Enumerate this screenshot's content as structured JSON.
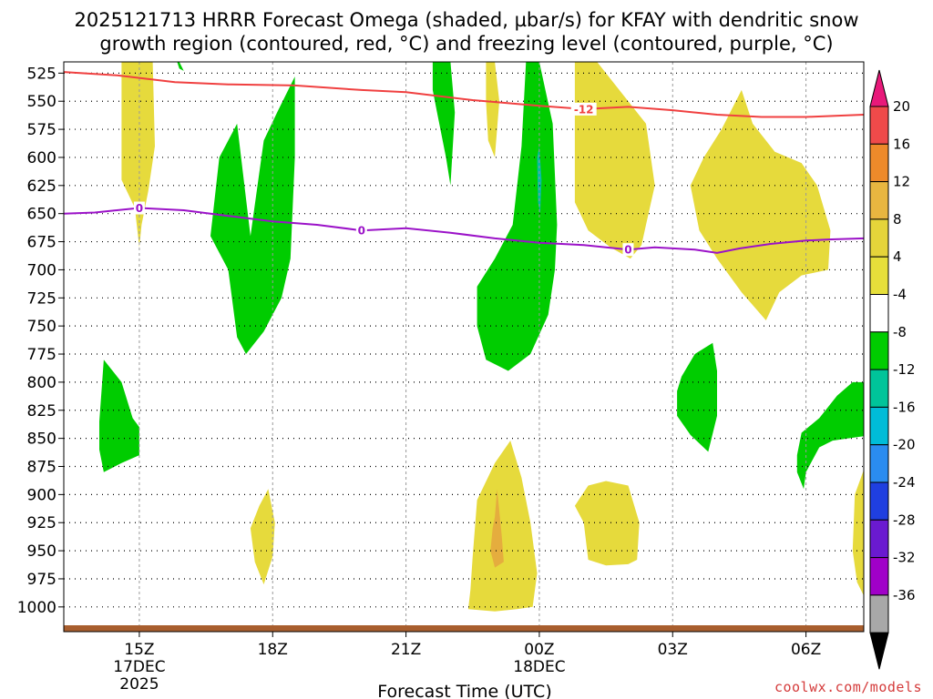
{
  "chart_data": {
    "type": "contour-cross-section",
    "title_line1": "2025121713 HRRR Forecast Omega (shaded, µbar/s) for KFAY with dendritic snow",
    "title_line2": "growth region (contoured, red, °C) and freezing level (contoured, purple, °C)",
    "xlabel": "Forecast Time (UTC)",
    "credit": "coolwx.com/models",
    "x_range_hours": [
      13.3,
      31.3
    ],
    "y_range_hpa": [
      515,
      1022
    ],
    "y_ticks": [
      525,
      550,
      575,
      600,
      625,
      650,
      675,
      700,
      725,
      750,
      775,
      800,
      825,
      850,
      875,
      900,
      925,
      950,
      975,
      1000
    ],
    "x_ticks": [
      {
        "h": 15,
        "label": "15Z",
        "sub1": "17DEC",
        "sub2": "2025"
      },
      {
        "h": 18,
        "label": "18Z",
        "sub1": "",
        "sub2": ""
      },
      {
        "h": 21,
        "label": "21Z",
        "sub1": "",
        "sub2": ""
      },
      {
        "h": 24,
        "label": "00Z",
        "sub1": "18DEC",
        "sub2": ""
      },
      {
        "h": 27,
        "label": "03Z",
        "sub1": "",
        "sub2": ""
      },
      {
        "h": 30,
        "label": "06Z",
        "sub1": "",
        "sub2": ""
      }
    ],
    "colorbar": {
      "levels": [
        20,
        16,
        12,
        8,
        4,
        -4,
        -8,
        -12,
        -16,
        -20,
        -24,
        -28,
        -32,
        -36
      ],
      "colors": [
        "#ef4a4a",
        "#ee8a2a",
        "#e8b640",
        "#e5d43a",
        "#e6df3a",
        "#ffffff",
        "#00cc00",
        "#00c49a",
        "#00bcd8",
        "#2a8cf0",
        "#1f3fe0",
        "#6a1ad0",
        "#a000c8",
        "#a8a8a8"
      ],
      "top_arrow_color": "#e8197a",
      "bottom_arrow_color": "#000000"
    },
    "regions": [
      {
        "class": "rising",
        "color": "#00cc00",
        "points": [
          [
            15.9,
            515
          ],
          [
            16.0,
            523
          ],
          [
            15.9,
            521
          ],
          [
            15.85,
            515
          ]
        ]
      },
      {
        "class": "rising",
        "color": "#00cc00",
        "points": [
          [
            17.5,
            670
          ],
          [
            17.8,
            585
          ],
          [
            18.1,
            560
          ],
          [
            18.5,
            528
          ],
          [
            18.5,
            600
          ],
          [
            18.4,
            690
          ],
          [
            18.2,
            725
          ],
          [
            17.8,
            755
          ],
          [
            17.4,
            775
          ],
          [
            17.2,
            760
          ],
          [
            17.0,
            700
          ],
          [
            16.6,
            670
          ],
          [
            16.8,
            600
          ],
          [
            17.2,
            570
          ]
        ]
      },
      {
        "class": "rising",
        "color": "#00cc00",
        "points": [
          [
            21.6,
            515
          ],
          [
            22.0,
            515
          ],
          [
            22.1,
            560
          ],
          [
            22.0,
            625
          ],
          [
            21.9,
            600
          ],
          [
            21.7,
            560
          ],
          [
            21.6,
            540
          ]
        ]
      },
      {
        "class": "rising",
        "color": "#00cc00",
        "points": [
          [
            23.7,
            515
          ],
          [
            24.0,
            515
          ],
          [
            24.3,
            570
          ],
          [
            24.4,
            660
          ],
          [
            24.35,
            700
          ],
          [
            24.2,
            740
          ],
          [
            23.8,
            775
          ],
          [
            23.3,
            790
          ],
          [
            22.8,
            780
          ],
          [
            22.6,
            750
          ],
          [
            22.6,
            715
          ],
          [
            23.0,
            690
          ],
          [
            23.4,
            660
          ],
          [
            23.6,
            590
          ]
        ]
      },
      {
        "class": "rising",
        "color": "#00bfa0",
        "points": [
          [
            23.95,
            600
          ],
          [
            24.0,
            590
          ],
          [
            24.05,
            620
          ],
          [
            24.02,
            650
          ],
          [
            23.97,
            640
          ]
        ]
      },
      {
        "class": "rising",
        "color": "#00cc00",
        "points": [
          [
            14.1,
            835
          ],
          [
            14.2,
            780
          ],
          [
            14.6,
            800
          ],
          [
            14.85,
            832
          ],
          [
            15.0,
            840
          ],
          [
            15.0,
            865
          ],
          [
            14.6,
            872
          ],
          [
            14.2,
            880
          ],
          [
            14.1,
            860
          ]
        ]
      },
      {
        "class": "rising",
        "color": "#00cc00",
        "points": [
          [
            27.2,
            795
          ],
          [
            27.5,
            775
          ],
          [
            27.9,
            765
          ],
          [
            28.0,
            790
          ],
          [
            28.0,
            830
          ],
          [
            27.8,
            862
          ],
          [
            27.4,
            847
          ],
          [
            27.1,
            830
          ],
          [
            27.1,
            808
          ]
        ]
      },
      {
        "class": "rising",
        "color": "#00cc00",
        "points": [
          [
            29.8,
            865
          ],
          [
            29.9,
            845
          ],
          [
            30.3,
            832
          ],
          [
            30.7,
            812
          ],
          [
            31.05,
            800
          ],
          [
            31.3,
            800
          ],
          [
            31.3,
            848
          ],
          [
            30.95,
            850
          ],
          [
            30.6,
            852
          ],
          [
            30.3,
            858
          ],
          [
            30.0,
            880
          ],
          [
            29.95,
            895
          ],
          [
            29.8,
            880
          ]
        ]
      },
      {
        "class": "sinking",
        "color": "#e6da3c",
        "points": [
          [
            14.6,
            515
          ],
          [
            15.3,
            515
          ],
          [
            15.35,
            590
          ],
          [
            15.2,
            630
          ],
          [
            15.05,
            660
          ],
          [
            15.0,
            680
          ],
          [
            14.9,
            645
          ],
          [
            14.6,
            620
          ],
          [
            14.6,
            580
          ]
        ]
      },
      {
        "class": "sinking",
        "color": "#e6da3c",
        "points": [
          [
            22.8,
            515
          ],
          [
            23.0,
            515
          ],
          [
            23.1,
            550
          ],
          [
            23.0,
            600
          ],
          [
            22.85,
            585
          ],
          [
            22.8,
            550
          ]
        ]
      },
      {
        "class": "sinking",
        "color": "#e6da3c",
        "points": [
          [
            24.8,
            515
          ],
          [
            25.3,
            515
          ],
          [
            25.8,
            540
          ],
          [
            26.4,
            570
          ],
          [
            26.6,
            625
          ],
          [
            26.4,
            660
          ],
          [
            26.3,
            678
          ],
          [
            26.05,
            690
          ],
          [
            25.6,
            680
          ],
          [
            25.1,
            665
          ],
          [
            24.8,
            640
          ],
          [
            24.8,
            570
          ]
        ]
      },
      {
        "class": "sinking",
        "color": "#e6da3c",
        "points": [
          [
            27.4,
            625
          ],
          [
            27.7,
            600
          ],
          [
            28.1,
            575
          ],
          [
            28.55,
            540
          ],
          [
            28.8,
            570
          ],
          [
            29.3,
            595
          ],
          [
            29.9,
            605
          ],
          [
            30.25,
            625
          ],
          [
            30.55,
            665
          ],
          [
            30.5,
            700
          ],
          [
            29.9,
            705
          ],
          [
            29.4,
            720
          ],
          [
            29.1,
            745
          ],
          [
            28.55,
            720
          ],
          [
            28.0,
            690
          ],
          [
            27.6,
            665
          ]
        ]
      },
      {
        "class": "sinking",
        "color": "#e6da3c",
        "points": [
          [
            17.7,
            910
          ],
          [
            17.9,
            895
          ],
          [
            18.05,
            925
          ],
          [
            18.0,
            955
          ],
          [
            17.8,
            980
          ],
          [
            17.6,
            960
          ],
          [
            17.5,
            930
          ]
        ]
      },
      {
        "class": "sinking",
        "color": "#e6da3c",
        "points": [
          [
            22.6,
            905
          ],
          [
            23.0,
            872
          ],
          [
            23.35,
            852
          ],
          [
            23.6,
            885
          ],
          [
            23.8,
            925
          ],
          [
            23.95,
            970
          ],
          [
            23.85,
            1000
          ],
          [
            23.5,
            1002
          ],
          [
            23.0,
            1004
          ],
          [
            22.4,
            1002
          ],
          [
            22.45,
            985
          ],
          [
            22.5,
            955
          ],
          [
            22.55,
            930
          ]
        ]
      },
      {
        "class": "sinking-strong",
        "color": "#e5ad3e",
        "points": [
          [
            23.0,
            920
          ],
          [
            23.05,
            895
          ],
          [
            23.15,
            935
          ],
          [
            23.2,
            960
          ],
          [
            23.0,
            965
          ],
          [
            22.9,
            950
          ],
          [
            22.95,
            930
          ]
        ]
      },
      {
        "class": "sinking",
        "color": "#e6da3c",
        "points": [
          [
            25.1,
            892
          ],
          [
            25.5,
            888
          ],
          [
            26.0,
            892
          ],
          [
            26.25,
            925
          ],
          [
            26.2,
            958
          ],
          [
            26.0,
            962
          ],
          [
            25.5,
            963
          ],
          [
            25.1,
            958
          ],
          [
            25.0,
            925
          ],
          [
            24.8,
            910
          ]
        ]
      },
      {
        "class": "sinking",
        "color": "#e6da3c",
        "points": [
          [
            31.3,
            878
          ],
          [
            31.1,
            900
          ],
          [
            31.05,
            950
          ],
          [
            31.15,
            978
          ],
          [
            31.3,
            990
          ]
        ]
      }
    ],
    "contours": [
      {
        "name": "dgz-top",
        "label": "-12",
        "color": "#f04040",
        "label_at_h": 25.0,
        "points": [
          [
            13.3,
            524
          ],
          [
            14.5,
            527
          ],
          [
            15.8,
            533
          ],
          [
            17.0,
            535
          ],
          [
            18.5,
            536
          ],
          [
            20.0,
            540
          ],
          [
            21.0,
            542
          ],
          [
            22.5,
            549
          ],
          [
            24.0,
            554
          ],
          [
            25.0,
            557
          ],
          [
            26.0,
            555
          ],
          [
            27.0,
            558
          ],
          [
            28.0,
            562
          ],
          [
            29.0,
            564
          ],
          [
            30.0,
            564
          ],
          [
            31.3,
            562
          ]
        ]
      },
      {
        "name": "freezing-level",
        "label": "0",
        "color": "#9b12c8",
        "label_at_h": [
          15.0,
          20.0,
          26.0
        ],
        "points": [
          [
            13.3,
            650
          ],
          [
            14.0,
            649
          ],
          [
            15.0,
            645
          ],
          [
            16.0,
            647
          ],
          [
            17.0,
            652
          ],
          [
            18.0,
            657
          ],
          [
            19.0,
            660
          ],
          [
            20.0,
            665
          ],
          [
            21.0,
            663
          ],
          [
            22.0,
            667
          ],
          [
            23.0,
            672
          ],
          [
            24.0,
            676
          ],
          [
            25.0,
            678
          ],
          [
            26.0,
            682
          ],
          [
            26.6,
            680
          ],
          [
            27.5,
            682
          ],
          [
            28.0,
            685
          ],
          [
            28.5,
            681
          ],
          [
            29.2,
            677
          ],
          [
            30.0,
            674
          ],
          [
            30.5,
            673
          ],
          [
            31.3,
            672
          ]
        ]
      }
    ],
    "ground_color": "#a85e2e"
  }
}
